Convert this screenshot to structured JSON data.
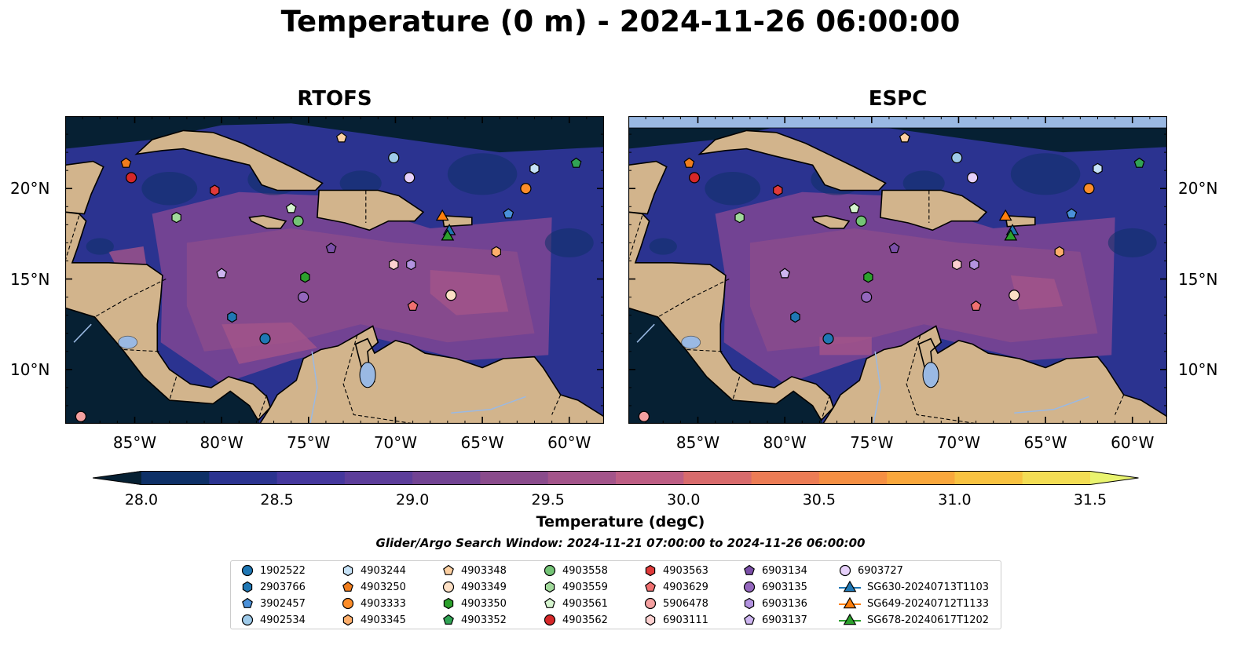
{
  "title": "Temperature (0 m) - 2024-11-26 06:00:00",
  "panels": [
    {
      "id": "rtofs",
      "title": "RTOFS"
    },
    {
      "id": "espc",
      "title": "ESPC"
    }
  ],
  "map_extent": {
    "lon": [
      -89,
      -58
    ],
    "lat": [
      7,
      24
    ]
  },
  "lon_ticks": [
    "85°W",
    "80°W",
    "75°W",
    "70°W",
    "65°W",
    "60°W"
  ],
  "lat_ticks": [
    "20°N",
    "15°N",
    "10°N"
  ],
  "colorbar": {
    "label": "Temperature (degC)",
    "ticks": [
      "28.0",
      "28.5",
      "29.0",
      "29.5",
      "30.0",
      "30.5",
      "31.0",
      "31.5"
    ],
    "range": [
      28.0,
      31.5
    ],
    "colors": [
      "#062033",
      "#0e3067",
      "#2b3390",
      "#45379d",
      "#5c3d9a",
      "#724393",
      "#8a4b8c",
      "#a3548a",
      "#bd5e84",
      "#d86b6c",
      "#ec7c55",
      "#f58f43",
      "#f9a73c",
      "#f8c241",
      "#f3dd54",
      "#e9f46f"
    ]
  },
  "search_window": "Glider/Argo Search Window: 2024-11-21 07:00:00 to 2024-11-26 06:00:00",
  "legend": [
    {
      "label": "1902522",
      "marker": "circle",
      "color": "#1f77b4"
    },
    {
      "label": "2903766",
      "marker": "hexagon",
      "color": "#1f77b4"
    },
    {
      "label": "3902457",
      "marker": "pentagon",
      "color": "#4a90d9"
    },
    {
      "label": "4902534",
      "marker": "circle",
      "color": "#9ecae9"
    },
    {
      "label": "4903244",
      "marker": "hexagon",
      "color": "#c6e2f7"
    },
    {
      "label": "4903250",
      "marker": "pentagon",
      "color": "#f07d1d"
    },
    {
      "label": "4903333",
      "marker": "circle",
      "color": "#fd8d29"
    },
    {
      "label": "4903345",
      "marker": "hexagon",
      "color": "#fdae6b"
    },
    {
      "label": "4903348",
      "marker": "pentagon",
      "color": "#fdd0a2"
    },
    {
      "label": "4903349",
      "marker": "circle",
      "color": "#fde0c5"
    },
    {
      "label": "4903350",
      "marker": "hexagon",
      "color": "#2ca02c"
    },
    {
      "label": "4903352",
      "marker": "pentagon",
      "color": "#31a354"
    },
    {
      "label": "4903558",
      "marker": "circle",
      "color": "#74c476"
    },
    {
      "label": "4903559",
      "marker": "hexagon",
      "color": "#a1d99b"
    },
    {
      "label": "4903561",
      "marker": "pentagon",
      "color": "#d6f5cf"
    },
    {
      "label": "4903562",
      "marker": "circle",
      "color": "#d62728"
    },
    {
      "label": "4903563",
      "marker": "hexagon",
      "color": "#e03a3a"
    },
    {
      "label": "4903629",
      "marker": "pentagon",
      "color": "#f07070"
    },
    {
      "label": "5906478",
      "marker": "circle",
      "color": "#f4a0a0"
    },
    {
      "label": "6903111",
      "marker": "hexagon",
      "color": "#fcd0d0"
    },
    {
      "label": "6903134",
      "marker": "pentagon",
      "color": "#7b4fa8"
    },
    {
      "label": "6903135",
      "marker": "circle",
      "color": "#9467bd"
    },
    {
      "label": "6903136",
      "marker": "hexagon",
      "color": "#b393e0"
    },
    {
      "label": "6903137",
      "marker": "pentagon",
      "color": "#cdb5f0"
    },
    {
      "label": "6903727",
      "marker": "circle",
      "color": "#e6d0fa"
    },
    {
      "label": "SG630-20240713T1103",
      "marker": "triangle",
      "color": "#1f77b4"
    },
    {
      "label": "SG649-20240712T1133",
      "marker": "triangle",
      "color": "#ff7f0e"
    },
    {
      "label": "SG678-20240617T1202",
      "marker": "triangle",
      "color": "#2ca02c"
    }
  ],
  "observations": [
    {
      "id": "1902522",
      "lon": -77.5,
      "lat": 11.7
    },
    {
      "id": "2903766",
      "lon": -79.4,
      "lat": 12.9
    },
    {
      "id": "3902457",
      "lon": -63.5,
      "lat": 18.6
    },
    {
      "id": "4902534",
      "lon": -70.1,
      "lat": 21.7
    },
    {
      "id": "4903244",
      "lon": -62.0,
      "lat": 21.1
    },
    {
      "id": "4903250",
      "lon": -85.5,
      "lat": 21.4
    },
    {
      "id": "4903333",
      "lon": -62.5,
      "lat": 20.0
    },
    {
      "id": "4903345",
      "lon": -64.2,
      "lat": 16.5
    },
    {
      "id": "4903348",
      "lon": -73.1,
      "lat": 22.8
    },
    {
      "id": "4903349",
      "lon": -66.8,
      "lat": 14.1
    },
    {
      "id": "4903350",
      "lon": -75.2,
      "lat": 15.1
    },
    {
      "id": "4903352",
      "lon": -59.6,
      "lat": 21.4
    },
    {
      "id": "4903558",
      "lon": -75.6,
      "lat": 18.2
    },
    {
      "id": "4903559",
      "lon": -82.6,
      "lat": 18.4
    },
    {
      "id": "4903561",
      "lon": -76.0,
      "lat": 18.9
    },
    {
      "id": "4903562",
      "lon": -85.2,
      "lat": 20.6
    },
    {
      "id": "4903563",
      "lon": -80.4,
      "lat": 19.9
    },
    {
      "id": "4903629",
      "lon": -69.0,
      "lat": 13.5
    },
    {
      "id": "5906478",
      "lon": -88.1,
      "lat": 7.4
    },
    {
      "id": "6903111",
      "lon": -70.1,
      "lat": 15.8
    },
    {
      "id": "6903134",
      "lon": -73.7,
      "lat": 16.7
    },
    {
      "id": "6903135",
      "lon": -75.3,
      "lat": 14.0
    },
    {
      "id": "6903136",
      "lon": -69.1,
      "lat": 15.8
    },
    {
      "id": "6903137",
      "lon": -80.0,
      "lat": 15.3
    },
    {
      "id": "6903727",
      "lon": -69.2,
      "lat": 20.6
    },
    {
      "id": "SG630-20240713T1103",
      "lon": -66.9,
      "lat": 17.7
    },
    {
      "id": "SG649-20240712T1133",
      "lon": -67.3,
      "lat": 18.5
    },
    {
      "id": "SG678-20240617T1202",
      "lon": -67.0,
      "lat": 17.4
    }
  ]
}
